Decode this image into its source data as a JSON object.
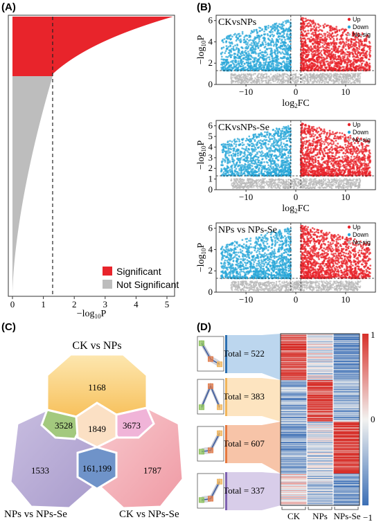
{
  "panels": {
    "A": "(A)",
    "B": "(B)",
    "C": "(C)",
    "D": "(D)"
  },
  "colors": {
    "red": "#e8242b",
    "gray": "#bdbdbd",
    "blue": "#2aa7d8",
    "up": "#e8242b",
    "down": "#2aa7d8",
    "nosig": "#b8b8b8"
  },
  "panel_a": {
    "legend": {
      "significant": "Significant",
      "not_significant": "Not Significant"
    },
    "x_ticks": [
      "0",
      "1",
      "2",
      "3",
      "4",
      "5"
    ],
    "xlabel_prefix": "−log",
    "xlabel_sub": "10",
    "xlabel_suffix": "P",
    "threshold": 1.3
  },
  "volcano_plots": [
    {
      "title": "CKvsNPs",
      "legend": [
        "Up",
        "Down",
        "No-sig"
      ],
      "x_ticks": [
        "−10",
        "0",
        "10"
      ],
      "y_ticks": [
        "0",
        "2",
        "4",
        "6"
      ],
      "show_xlabel": true
    },
    {
      "title": "CKvsNPs-Se",
      "legend": [
        "Up",
        "Down",
        "No-sig"
      ],
      "x_ticks": [
        "−10",
        "0",
        "10"
      ],
      "y_ticks": [
        "0",
        "1",
        "2",
        "3",
        "4",
        "5",
        "6"
      ],
      "show_xlabel": true
    },
    {
      "title": "NPs vs NPs-Se",
      "legend": [
        "Up",
        "Down",
        "No-sig"
      ],
      "x_ticks": [
        "−10",
        "0",
        "10"
      ],
      "y_ticks": [
        "0",
        "2",
        "4",
        "6"
      ],
      "show_xlabel": false
    }
  ],
  "volcano_axis": {
    "ylabel_prefix": "−log",
    "ylabel_sub": "10",
    "ylabel_suffix": "P",
    "xlabel_prefix": "log",
    "xlabel_sub": "2",
    "xlabel_suffix": "FC"
  },
  "venn": {
    "labels": {
      "top": "CK vs NPs",
      "left": "NPs vs NPs-Se",
      "right": "CK vs NPs-Se"
    },
    "values": {
      "top_only": "1168",
      "left_only": "1533",
      "right_only": "1787",
      "top_left": "3528",
      "top_right": "3673",
      "center": "1849",
      "left_right": "161,199"
    }
  },
  "heatmap": {
    "clusters": [
      "Total = 522",
      "Total = 383",
      "Total = 607",
      "Total = 337"
    ],
    "columns": [
      "CK",
      "NPs",
      "NPs-Se"
    ],
    "scale_max": "1",
    "scale_mid": "0",
    "scale_min": "−1"
  }
}
